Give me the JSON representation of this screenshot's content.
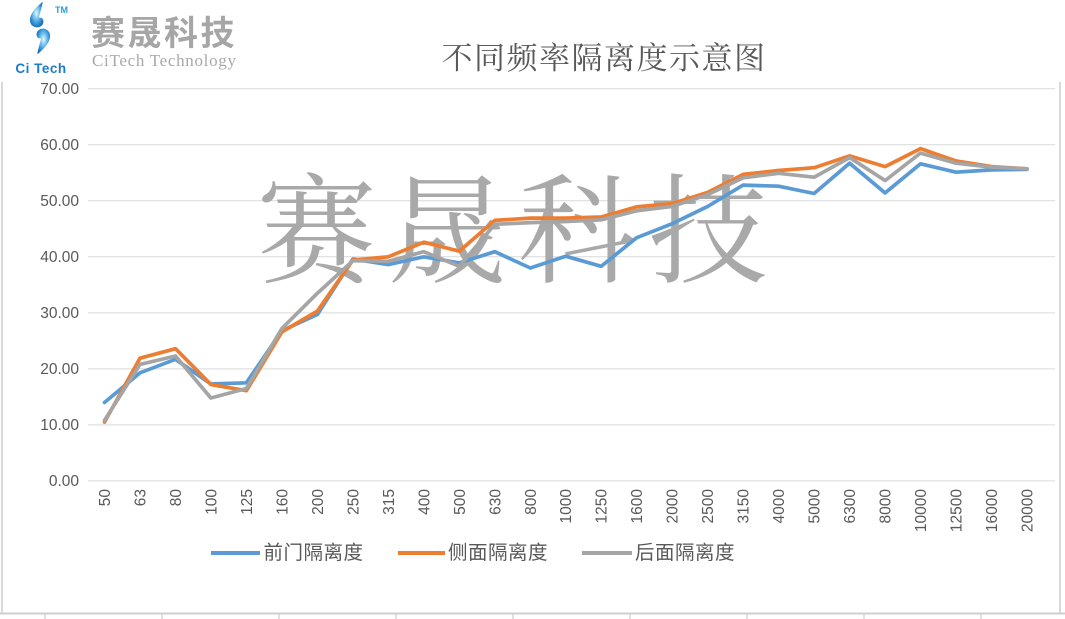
{
  "logo": {
    "tm": "TM",
    "wordmark": "Ci Tech",
    "brand": "赛晟科技",
    "subtitle": "CiTech Technology",
    "accent_color": "#1B75BC"
  },
  "watermark": {
    "text": "赛晟科技",
    "color": "#A9A9A9"
  },
  "chart_data": {
    "type": "line",
    "title": "不同频率隔离度示意图",
    "xlabel": "",
    "ylabel": "",
    "categories": [
      "50",
      "63",
      "80",
      "100",
      "125",
      "160",
      "200",
      "250",
      "315",
      "400",
      "500",
      "630",
      "800",
      "1000",
      "1250",
      "1600",
      "2000",
      "2500",
      "3150",
      "4000",
      "5000",
      "6300",
      "8000",
      "10000",
      "12500",
      "16000",
      "20000"
    ],
    "series": [
      {
        "name": "前门隔离度",
        "color": "#5B9BD5",
        "values": [
          14.0,
          19.3,
          21.7,
          17.3,
          17.5,
          26.8,
          29.7,
          39.6,
          38.6,
          40.0,
          38.9,
          40.9,
          38.0,
          40.1,
          38.3,
          43.4,
          45.9,
          49.0,
          52.8,
          52.6,
          51.3,
          56.7,
          51.4,
          56.6,
          55.1,
          55.5,
          55.6
        ]
      },
      {
        "name": "侧面隔离度",
        "color": "#ED7D31",
        "values": [
          10.5,
          21.9,
          23.6,
          17.2,
          16.1,
          26.6,
          30.3,
          39.4,
          40.0,
          42.6,
          41.0,
          46.5,
          46.9,
          46.9,
          47.1,
          48.9,
          49.5,
          51.5,
          54.7,
          55.4,
          55.9,
          58.0,
          56.1,
          59.3,
          57.1,
          56.1,
          55.7
        ]
      },
      {
        "name": "后面隔离度",
        "color": "#A5A5A5",
        "values": [
          10.8,
          20.8,
          22.3,
          14.8,
          16.5,
          27.2,
          33.5,
          39.3,
          39.2,
          40.9,
          38.3,
          45.8,
          46.1,
          46.3,
          46.6,
          48.2,
          49.0,
          51.1,
          54.1,
          54.9,
          54.2,
          57.7,
          53.6,
          58.5,
          56.7,
          56.0,
          55.7
        ]
      }
    ],
    "yticks": [
      "0.00",
      "10.00",
      "20.00",
      "30.00",
      "40.00",
      "50.00",
      "60.00",
      "70.00"
    ],
    "ylim": [
      0,
      70
    ],
    "grid": "horizontal",
    "legend_position": "bottom",
    "gridline_color": "#D9D9D9",
    "axis_text_color": "#595959"
  }
}
